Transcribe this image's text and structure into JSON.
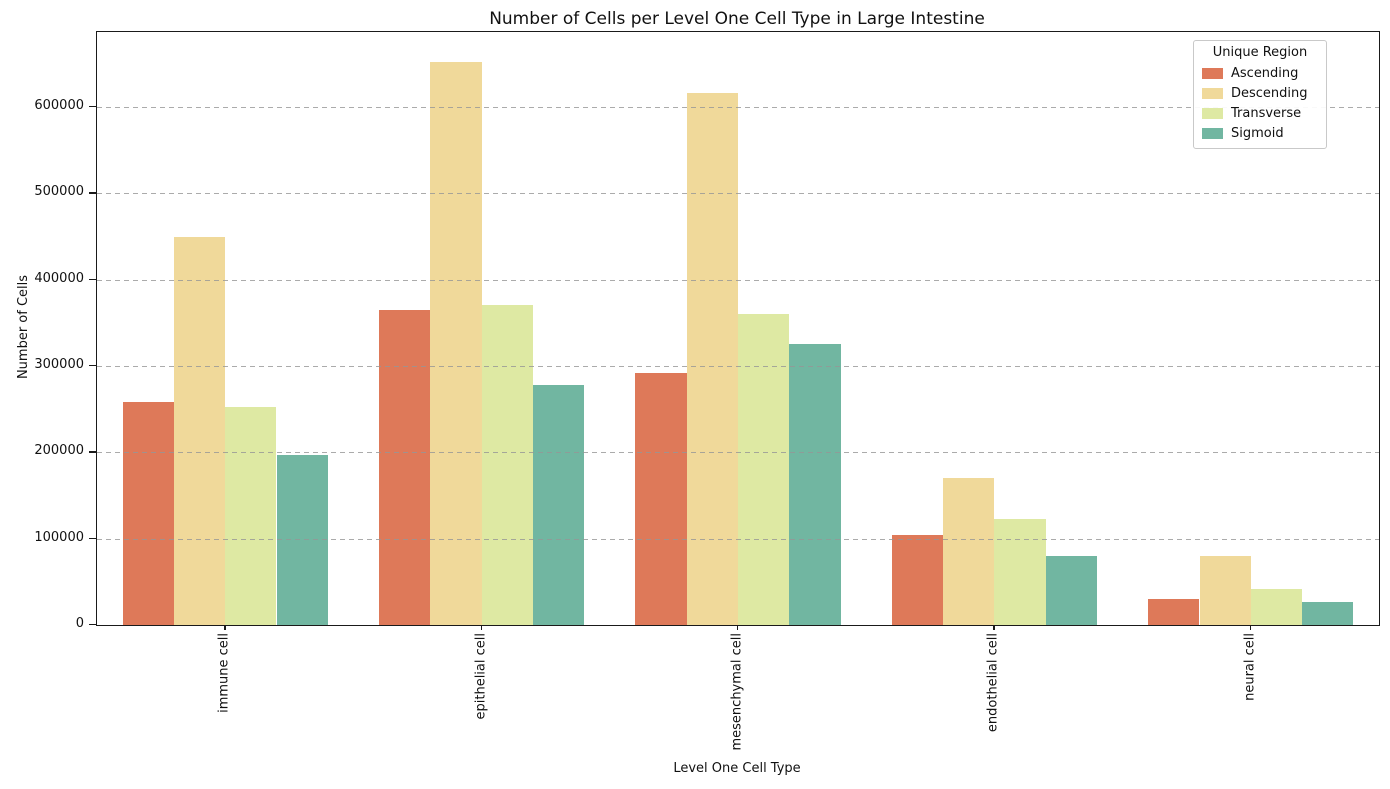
{
  "chart_data": {
    "type": "bar",
    "title": "Number of Cells per Level One Cell Type in Large Intestine",
    "xlabel": "Level One Cell Type",
    "ylabel": "Number of Cells",
    "categories": [
      "immune cell",
      "epithelial cell",
      "mesenchymal cell",
      "endothelial cell",
      "neural cell"
    ],
    "series": [
      {
        "name": "Ascending",
        "color": "#de7959",
        "values": [
          258000,
          365000,
          292000,
          104000,
          30000
        ]
      },
      {
        "name": "Descending",
        "color": "#f0d99a",
        "values": [
          450000,
          652000,
          616000,
          170000,
          80000
        ]
      },
      {
        "name": "Transverse",
        "color": "#dee9a3",
        "values": [
          253000,
          371000,
          360000,
          123000,
          42000
        ]
      },
      {
        "name": "Sigmoid",
        "color": "#71b6a1",
        "values": [
          197000,
          278000,
          326000,
          80000,
          27000
        ]
      }
    ],
    "ylim": [
      0,
      687000
    ],
    "yticks": [
      0,
      100000,
      200000,
      300000,
      400000,
      500000,
      600000
    ],
    "grid": "horizontal dashed gridlines drawn above bars",
    "legend": {
      "title": "Unique Region",
      "position": "upper right"
    }
  }
}
